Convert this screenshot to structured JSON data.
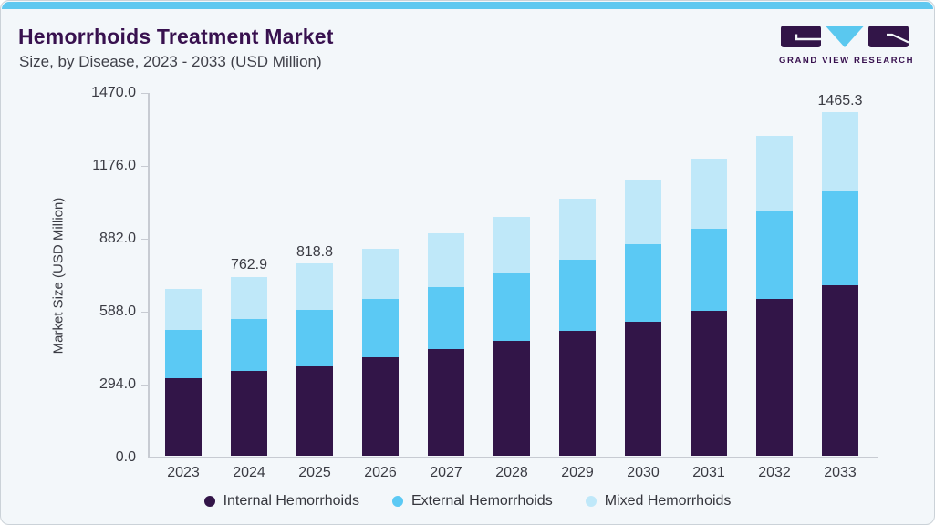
{
  "header": {
    "title": "Hemorrhoids Treatment Market",
    "subtitle": "Size, by Disease, 2023 - 2033 (USD Million)"
  },
  "logo": {
    "text": "GRAND VIEW RESEARCH",
    "mark_colors": {
      "purple": "#321548",
      "blue": "#5ac8ef"
    }
  },
  "colors": {
    "card_background": "#f3f7fa",
    "top_accent": "#5fc8f0",
    "title": "#38114f",
    "axis_text": "#3a3b43",
    "axis_line": "#c7cbd2"
  },
  "chart_data": {
    "type": "bar",
    "stacked": true,
    "title": "Hemorrhoids Treatment Market Size, by Disease, 2023 - 2033 (USD Million)",
    "ylabel": "Market Size (USD Million)",
    "xlabel": "",
    "ylim": [
      0,
      1470
    ],
    "y_ticks": [
      "0.0",
      "294.0",
      "588.0",
      "882.0",
      "1176.0",
      "1470.0"
    ],
    "grid": false,
    "legend_position": "bottom",
    "categories": [
      "2023",
      "2024",
      "2025",
      "2026",
      "2027",
      "2028",
      "2029",
      "2030",
      "2031",
      "2032",
      "2033"
    ],
    "series": [
      {
        "name": "Internal Hemorrhoids",
        "color": "#321548",
        "values": [
          329.4,
          359.4,
          381.2,
          417.8,
          452.8,
          489.0,
          530.6,
          570.7,
          618.5,
          669.1,
          725.1
        ]
      },
      {
        "name": "External Hemorrhoids",
        "color": "#5bc9f4",
        "values": [
          207.3,
          224.1,
          240.0,
          250.2,
          265.7,
          287.8,
          304.6,
          329.4,
          347.8,
          375.0,
          401.8
        ]
      },
      {
        "name": "Mixed Hemorrhoids",
        "color": "#bfe8f9",
        "values": [
          172.8,
          179.4,
          197.6,
          212.6,
          228.6,
          241.8,
          260.3,
          278.1,
          300.8,
          318.7,
          338.4
        ]
      }
    ],
    "totals": [
      709.5,
      762.9,
      818.8,
      880.6,
      947.1,
      1018.6,
      1095.5,
      1178.2,
      1267.1,
      1362.8,
      1465.3
    ],
    "data_labels": [
      null,
      "762.9",
      "818.8",
      null,
      null,
      null,
      null,
      null,
      null,
      null,
      "1465.3"
    ]
  }
}
